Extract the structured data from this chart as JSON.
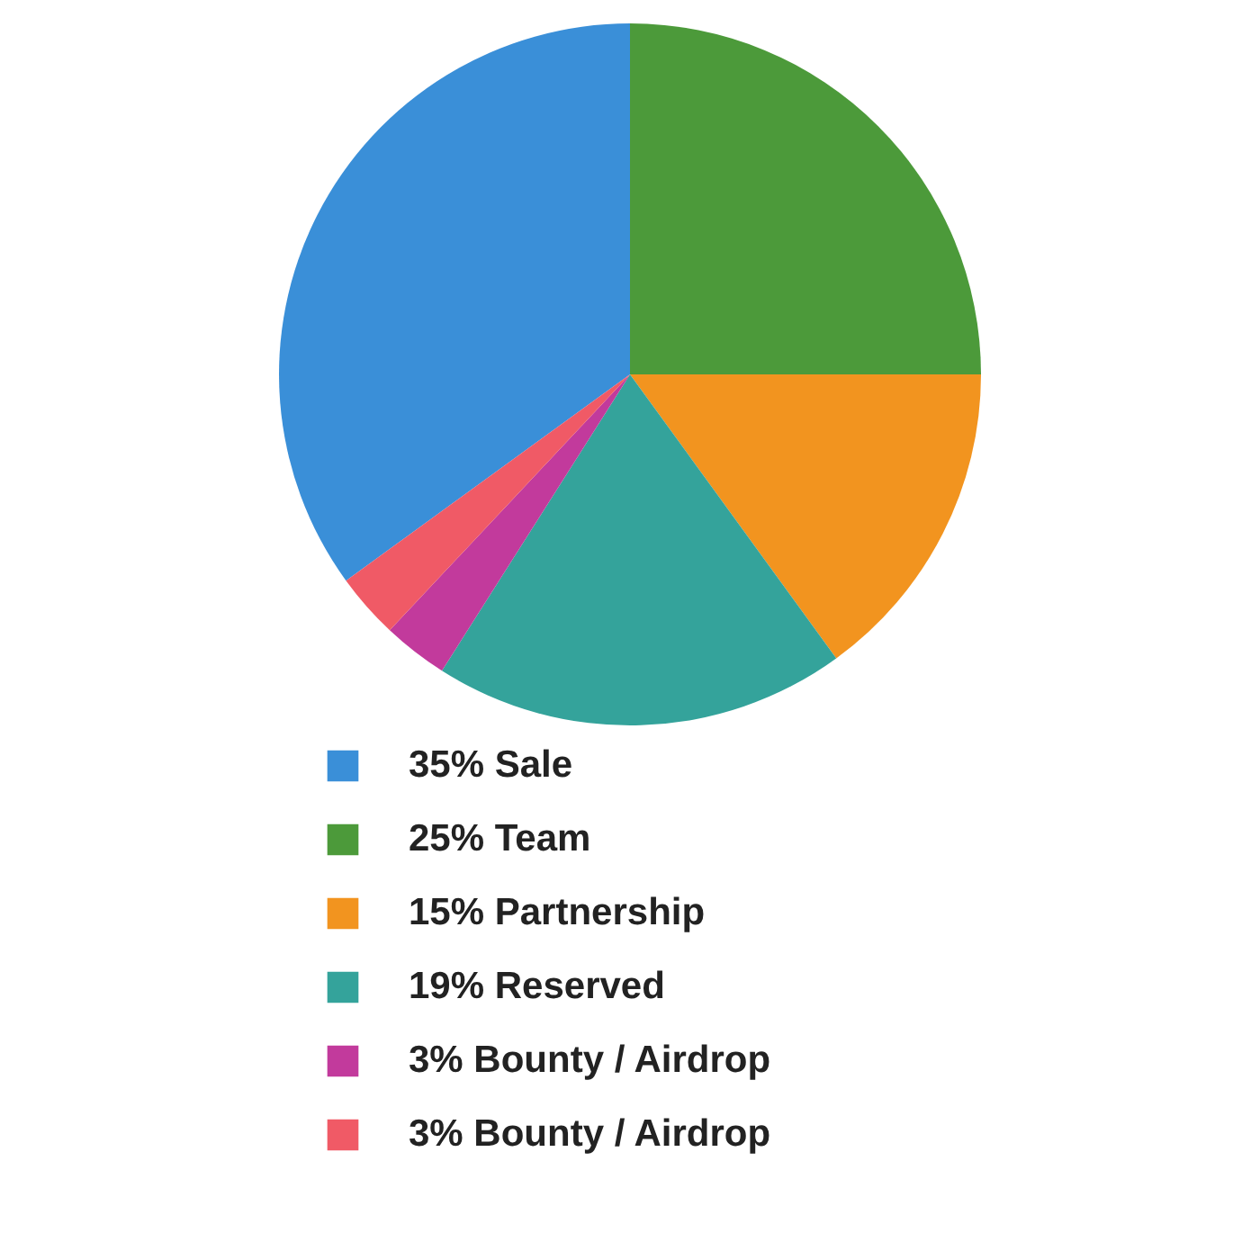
{
  "chart_data": {
    "type": "pie",
    "categories": [
      "35% Sale",
      "25% Team",
      "15% Partnership",
      "19% Reserved",
      "3% Bounty / Airdrop",
      "3% Bounty / Airdrop"
    ],
    "values": [
      35,
      25,
      15,
      19,
      3,
      3
    ],
    "colors": [
      "#3a8fd8",
      "#4c9a3a",
      "#f2941f",
      "#34a39b",
      "#c23a9c",
      "#f05a66"
    ],
    "legend": "bottom"
  }
}
